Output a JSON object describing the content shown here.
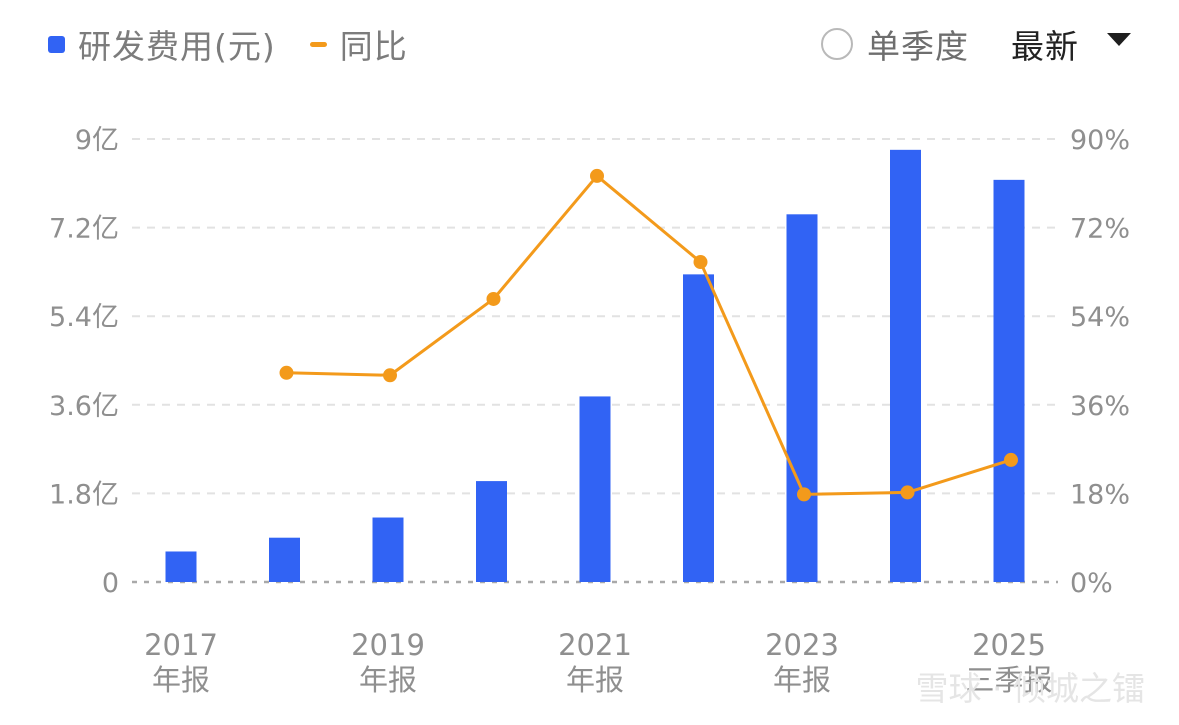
{
  "legend": {
    "bar_label": "研发费用(元)",
    "line_label": "同比"
  },
  "controls": {
    "radio_label": "单季度",
    "select_value": "最新"
  },
  "colors": {
    "bar": "#3163f4",
    "line": "#f39a1b",
    "grid": "#e2e2e2",
    "text": "#8f8f8f"
  },
  "chart_data": {
    "type": "bar+line",
    "categories": [
      "2017年报",
      "2018年报",
      "2019年报",
      "2020年报",
      "2021年报",
      "2022年报",
      "2023年报",
      "2024年报",
      "2025三季报"
    ],
    "x_tick_labels": [
      {
        "index": 0,
        "line1": "2017",
        "line2": "年报"
      },
      {
        "index": 2,
        "line1": "2019",
        "line2": "年报"
      },
      {
        "index": 4,
        "line1": "2021",
        "line2": "年报"
      },
      {
        "index": 6,
        "line1": "2023",
        "line2": "年报"
      },
      {
        "index": 8,
        "line1": "2025",
        "line2": "三季报"
      }
    ],
    "bar_series": {
      "name": "研发费用(元)",
      "axis": "left",
      "unit": "亿",
      "values": [
        0.62,
        0.9,
        1.31,
        2.05,
        3.77,
        6.25,
        7.47,
        8.78,
        8.17
      ]
    },
    "line_series": {
      "name": "同比",
      "axis": "right",
      "unit": "%",
      "values": [
        null,
        42.5,
        42,
        57.5,
        82.5,
        65,
        17.8,
        18.2,
        24.8
      ]
    },
    "y_left": {
      "min": 0,
      "max": 9,
      "ticks": [
        0,
        1.8,
        3.6,
        5.4,
        7.2,
        9
      ],
      "tick_labels": [
        "0",
        "1.8亿",
        "3.6亿",
        "5.4亿",
        "7.2亿",
        "9亿"
      ]
    },
    "y_right": {
      "min": 0,
      "max": 90,
      "ticks": [
        0,
        18,
        36,
        54,
        72,
        90
      ],
      "tick_labels": [
        "0%",
        "18%",
        "36%",
        "54%",
        "72%",
        "90%"
      ]
    },
    "grid": true,
    "legend_position": "top-left"
  },
  "watermark": "雪球 · 倾城之镭"
}
